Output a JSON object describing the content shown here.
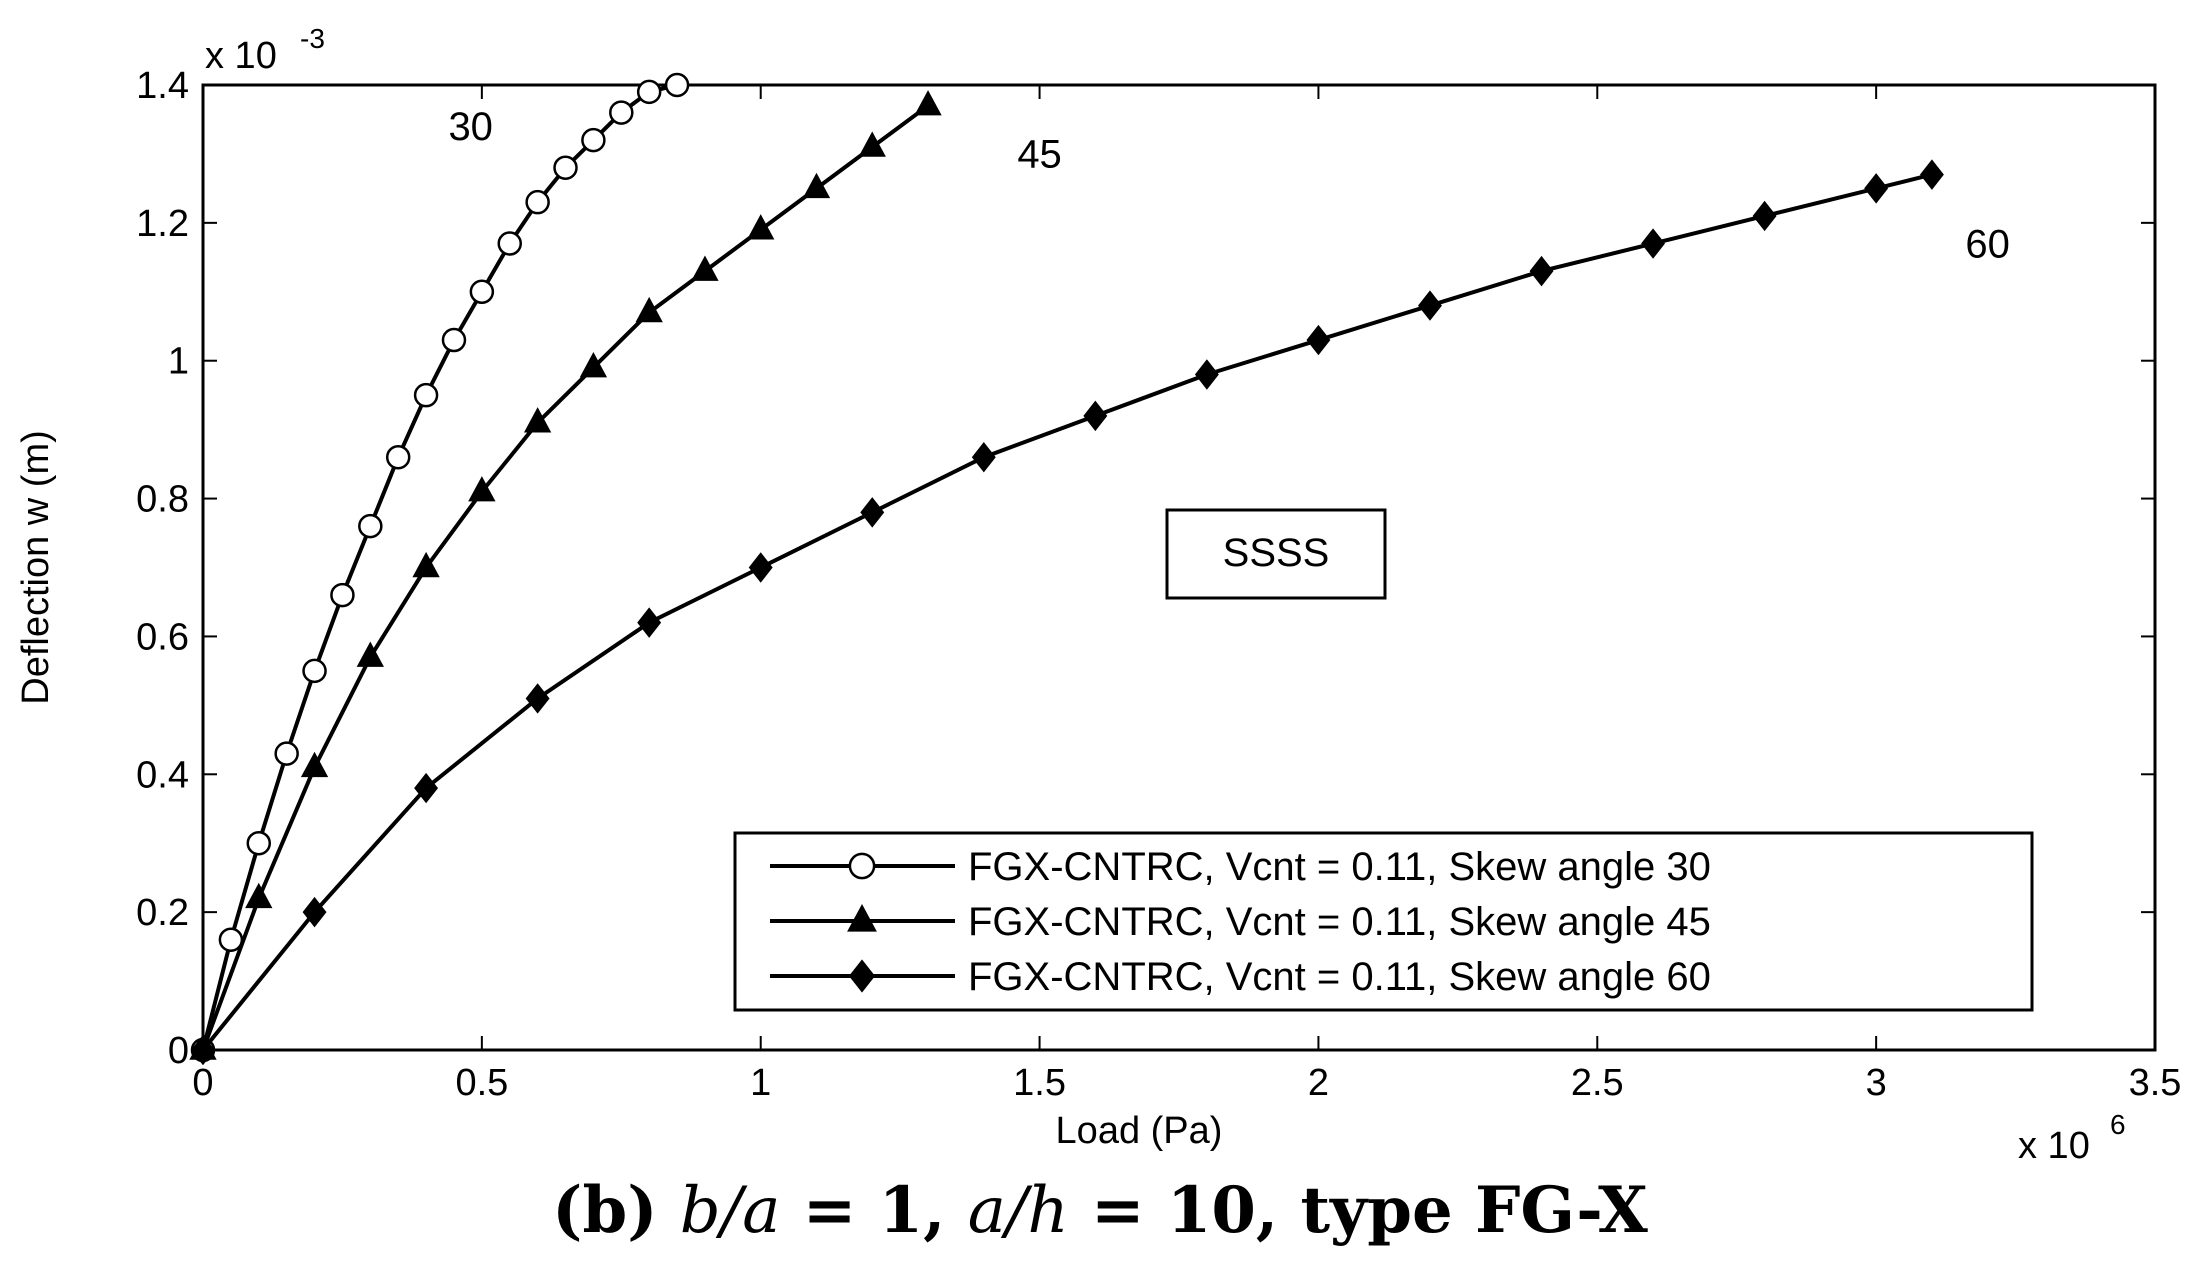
{
  "chart_data": {
    "type": "line",
    "title": "",
    "xlabel": "Load (Pa)",
    "ylabel": "Deflection w (m)",
    "x_multiplier": "x 10",
    "x_exponent": "6",
    "y_multiplier": "x 10",
    "y_exponent": "-3",
    "xlim": [
      0,
      3.5
    ],
    "ylim": [
      0,
      1.4
    ],
    "x_ticks": [
      "0",
      "0.5",
      "1",
      "1.5",
      "2",
      "2.5",
      "3",
      "3.5"
    ],
    "y_ticks": [
      "0",
      "0.2",
      "0.4",
      "0.6",
      "0.8",
      "1",
      "1.2",
      "1.4"
    ],
    "grid": false,
    "legend_position": "bottom-right",
    "annotations": [
      {
        "text": "30",
        "x": 0.48,
        "y": 1.32
      },
      {
        "text": "45",
        "x": 1.5,
        "y": 1.28
      },
      {
        "text": "60",
        "x": 3.2,
        "y": 1.15
      }
    ],
    "boundary_label": "SSSS",
    "series": [
      {
        "name": "FGX-CNTRC, Vcnt = 0.11, Skew angle 30",
        "marker": "circle",
        "x": [
          0,
          0.05,
          0.1,
          0.15,
          0.2,
          0.25,
          0.3,
          0.35,
          0.4,
          0.45,
          0.5,
          0.55,
          0.6,
          0.65,
          0.7,
          0.75,
          0.8,
          0.85
        ],
        "y": [
          0,
          0.16,
          0.3,
          0.43,
          0.55,
          0.66,
          0.76,
          0.86,
          0.95,
          1.03,
          1.1,
          1.17,
          1.23,
          1.28,
          1.32,
          1.36,
          1.39,
          1.4
        ]
      },
      {
        "name": "FGX-CNTRC, Vcnt = 0.11, Skew angle 45",
        "marker": "triangle",
        "x": [
          0,
          0.1,
          0.2,
          0.3,
          0.4,
          0.5,
          0.6,
          0.7,
          0.8,
          0.9,
          1.0,
          1.1,
          1.2,
          1.3
        ],
        "y": [
          0,
          0.22,
          0.41,
          0.57,
          0.7,
          0.81,
          0.91,
          0.99,
          1.07,
          1.13,
          1.19,
          1.25,
          1.31,
          1.37
        ]
      },
      {
        "name": "FGX-CNTRC, Vcnt = 0.11, Skew angle 60",
        "marker": "diamond",
        "x": [
          0,
          0.2,
          0.4,
          0.6,
          0.8,
          1.0,
          1.2,
          1.4,
          1.6,
          1.8,
          2.0,
          2.2,
          2.4,
          2.6,
          2.8,
          3.0,
          3.1
        ],
        "y": [
          0,
          0.2,
          0.38,
          0.51,
          0.62,
          0.7,
          0.78,
          0.86,
          0.92,
          0.98,
          1.03,
          1.08,
          1.13,
          1.17,
          1.21,
          1.25,
          1.27
        ]
      }
    ]
  },
  "caption": {
    "prefix": "(b) ",
    "ratio1": "b/a",
    "eq1": " = 1, ",
    "ratio2": "a/h",
    "eq2": " = 10, type FG-X"
  }
}
